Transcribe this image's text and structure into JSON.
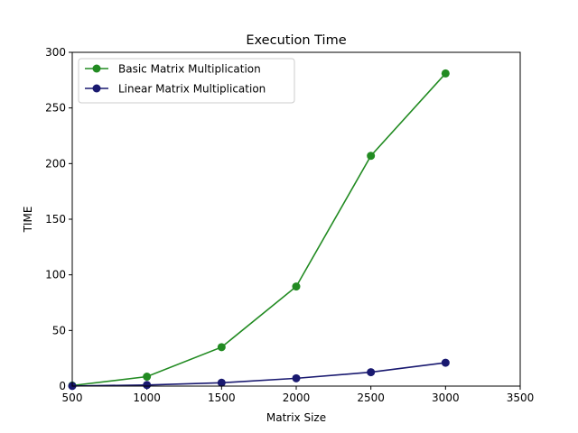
{
  "chart_data": {
    "type": "line",
    "title": "Execution Time",
    "xlabel": "Matrix Size",
    "ylabel": "TIME",
    "xlim": [
      500,
      3500
    ],
    "ylim": [
      0,
      300
    ],
    "xticks": [
      500,
      1000,
      1500,
      2000,
      2500,
      3000,
      3500
    ],
    "yticks": [
      0,
      50,
      100,
      150,
      200,
      250,
      300
    ],
    "x": [
      500,
      1000,
      1500,
      2000,
      2500,
      3000
    ],
    "grid": false,
    "legend_position": "top-left",
    "series": [
      {
        "name": "Basic Matrix Multiplication",
        "color": "#228b22",
        "marker": "circle",
        "values": [
          0.5,
          8.5,
          35,
          89.5,
          207,
          281
        ]
      },
      {
        "name": "Linear Matrix Multiplication",
        "color": "#191970",
        "marker": "circle",
        "values": [
          0.1,
          1,
          3,
          7,
          12.5,
          21
        ]
      }
    ]
  }
}
